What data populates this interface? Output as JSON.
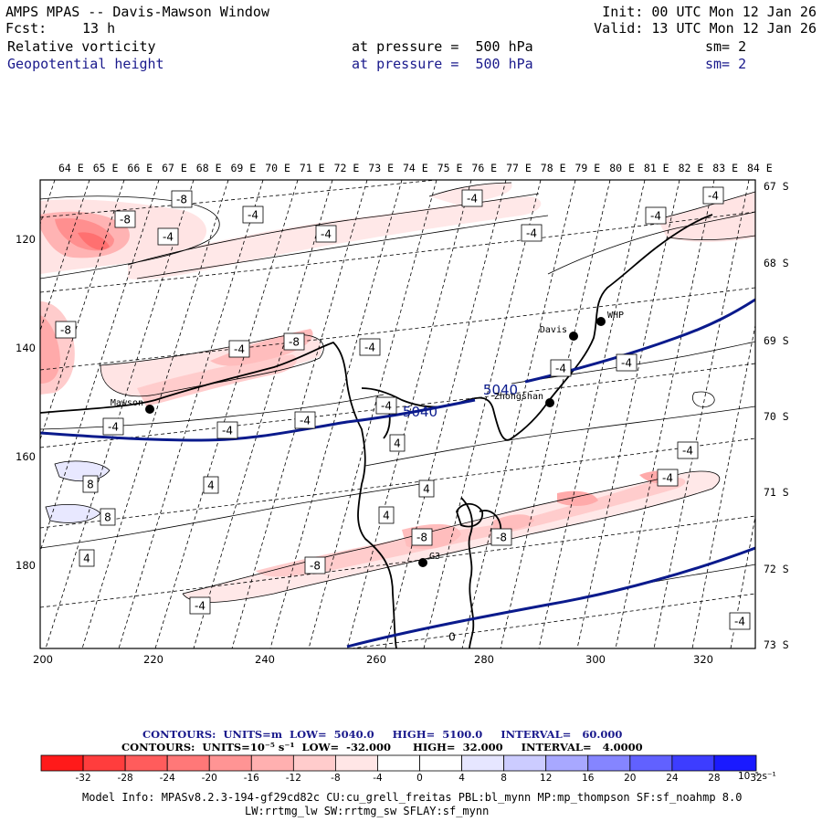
{
  "header": {
    "title": "AMPS MPAS -- Davis-Mawson Window",
    "init_line": "Init: 00 UTC Mon 12 Jan 26",
    "fcst_label": "Fcst:",
    "fcst_value": "13 h",
    "valid_line": "Valid: 13 UTC Mon 12 Jan 26",
    "field1": {
      "name": "Relative vorticity",
      "level": "at pressure =  500 hPa",
      "smooth": "sm= 2"
    },
    "field2": {
      "name": "Geopotential height",
      "level": "at pressure =  500 hPa",
      "smooth": "sm= 2"
    }
  },
  "map": {
    "top_lon_labels": [
      "64 E",
      "65 E",
      "66 E",
      "67 E",
      "68 E",
      "69 E",
      "70 E",
      "71 E",
      "72 E",
      "73 E",
      "74 E",
      "75 E",
      "76 E",
      "77 E",
      "78 E",
      "79 E",
      "80 E",
      "81 E",
      "82 E",
      "83 E",
      "84 E"
    ],
    "right_lat_labels": [
      "67 S",
      "68 S",
      "69 S",
      "70 S",
      "71 S",
      "72 S",
      "73 S"
    ],
    "x_ticks": [
      "200",
      "220",
      "240",
      "260",
      "280",
      "300",
      "320"
    ],
    "y_ticks": [
      "120",
      "140",
      "160",
      "180"
    ],
    "stations": [
      {
        "name": "Davis",
        "name_side": "left"
      },
      {
        "name": "WHP",
        "name_side": "right"
      },
      {
        "name": "Mawson",
        "name_side": "left"
      },
      {
        "name": "Zhongshan",
        "name_side": "left"
      },
      {
        "name": "G3",
        "name_side": "right"
      }
    ],
    "height_labels": [
      "5040",
      "5040"
    ],
    "vort_labels": [
      "-8",
      "-8",
      "-4",
      "-4",
      "-4",
      "-4",
      "-4",
      "-4",
      "-4",
      "-8",
      "-8",
      "-4",
      "-4",
      "-4",
      "-4",
      "-4",
      "-4",
      "-4",
      "8",
      "8",
      "4",
      "-4",
      "4",
      "4",
      "4",
      "-8",
      "-8",
      "-4",
      "-4",
      "-8",
      "-4",
      "4",
      "-4",
      "0"
    ],
    "contour_color": "#0a1a8c",
    "line_color": "#000000"
  },
  "footer": {
    "contours_height": "CONTOURS:  UNITS=m  LOW=  5040.0     HIGH=  5100.0     INTERVAL=   60.000",
    "contours_vort": "CONTOURS:  UNITS=10⁻⁵ s⁻¹  LOW=  -32.000      HIGH=  32.000     INTERVAL=   4.0000",
    "colorbar_ticks": [
      "-32",
      "-28",
      "-24",
      "-20",
      "-16",
      "-12",
      "-8",
      "-4",
      "0",
      "4",
      "8",
      "12",
      "16",
      "20",
      "24",
      "28",
      "32"
    ],
    "colorbar_units": "10⁻⁵ s⁻¹",
    "colorbar_colors": [
      "#ff1a1a",
      "#ff3d3d",
      "#ff5c5c",
      "#ff7878",
      "#ff9494",
      "#ffb0b0",
      "#ffcccc",
      "#ffe6e6",
      "#ffffff",
      "#ffffff",
      "#e6e6ff",
      "#ccccff",
      "#a8a8ff",
      "#8585ff",
      "#6161ff",
      "#3d3dff",
      "#1a1aff"
    ],
    "model_info_1": "Model Info: MPASv8.2.3-194-gf29cd82c CU:cu_grell_freitas PBL:bl_mynn MP:mp_thompson SF:sf_noahmp 8.0",
    "model_info_2": "LW:rrtmg_lw SW:rrtmg_sw SFLAY:sf_mynn"
  }
}
